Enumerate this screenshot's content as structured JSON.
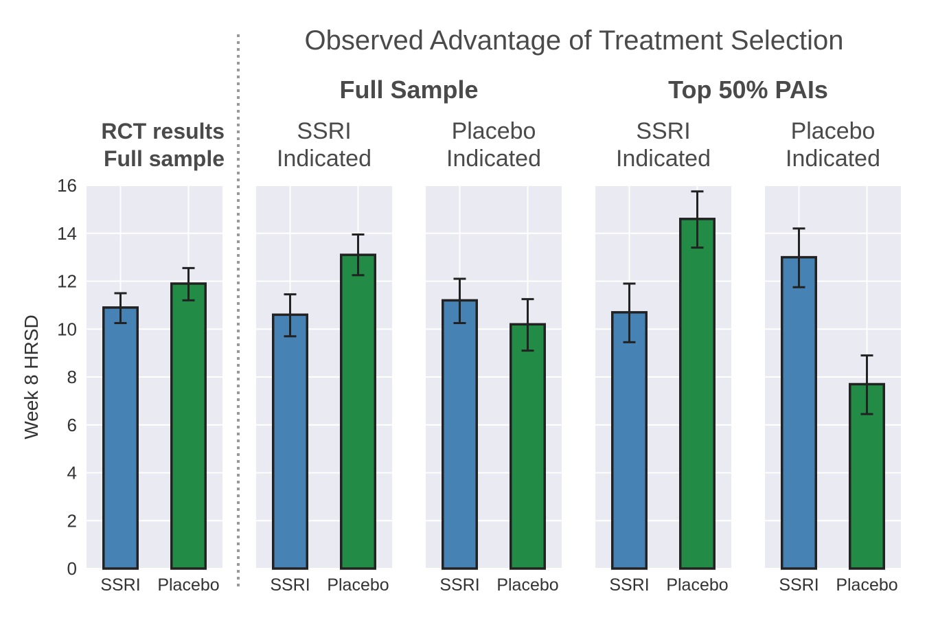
{
  "chart_data": {
    "type": "bar",
    "title": "Observed Advantage of Treatment Selection",
    "ylabel": "Week 8 HRSD",
    "ylim": [
      0,
      16
    ],
    "yticks": [
      "0",
      "2",
      "4",
      "6",
      "8",
      "10",
      "12",
      "14",
      "16"
    ],
    "yticks_values": [
      0,
      2,
      4,
      6,
      8,
      10,
      12,
      14,
      16
    ],
    "categories": [
      "SSRI",
      "Placebo"
    ],
    "colors": {
      "SSRI": "#4682b4",
      "Placebo": "#228b45"
    },
    "group_titles": [
      "Full Sample",
      "Top 50% PAIs"
    ],
    "panels": [
      {
        "title_lines": [
          "RCT results",
          "Full sample"
        ],
        "bold_title": true,
        "values": [
          10.9,
          11.9
        ],
        "err_low": [
          10.25,
          11.2
        ],
        "err_high": [
          11.5,
          12.55
        ]
      },
      {
        "title_lines": [
          "SSRI",
          "Indicated"
        ],
        "bold_title": false,
        "values": [
          10.6,
          13.1
        ],
        "err_low": [
          9.7,
          12.25
        ],
        "err_high": [
          11.45,
          13.95
        ]
      },
      {
        "title_lines": [
          "Placebo",
          "Indicated"
        ],
        "bold_title": false,
        "values": [
          11.2,
          10.2
        ],
        "err_low": [
          10.25,
          9.1
        ],
        "err_high": [
          12.1,
          11.25
        ]
      },
      {
        "title_lines": [
          "SSRI",
          "Indicated"
        ],
        "bold_title": false,
        "values": [
          10.7,
          14.6
        ],
        "err_low": [
          9.45,
          13.4
        ],
        "err_high": [
          11.9,
          15.75
        ]
      },
      {
        "title_lines": [
          "Placebo",
          "Indicated"
        ],
        "bold_title": false,
        "values": [
          13.0,
          7.7
        ],
        "err_low": [
          11.75,
          6.45
        ],
        "err_high": [
          14.2,
          8.9
        ]
      }
    ]
  }
}
